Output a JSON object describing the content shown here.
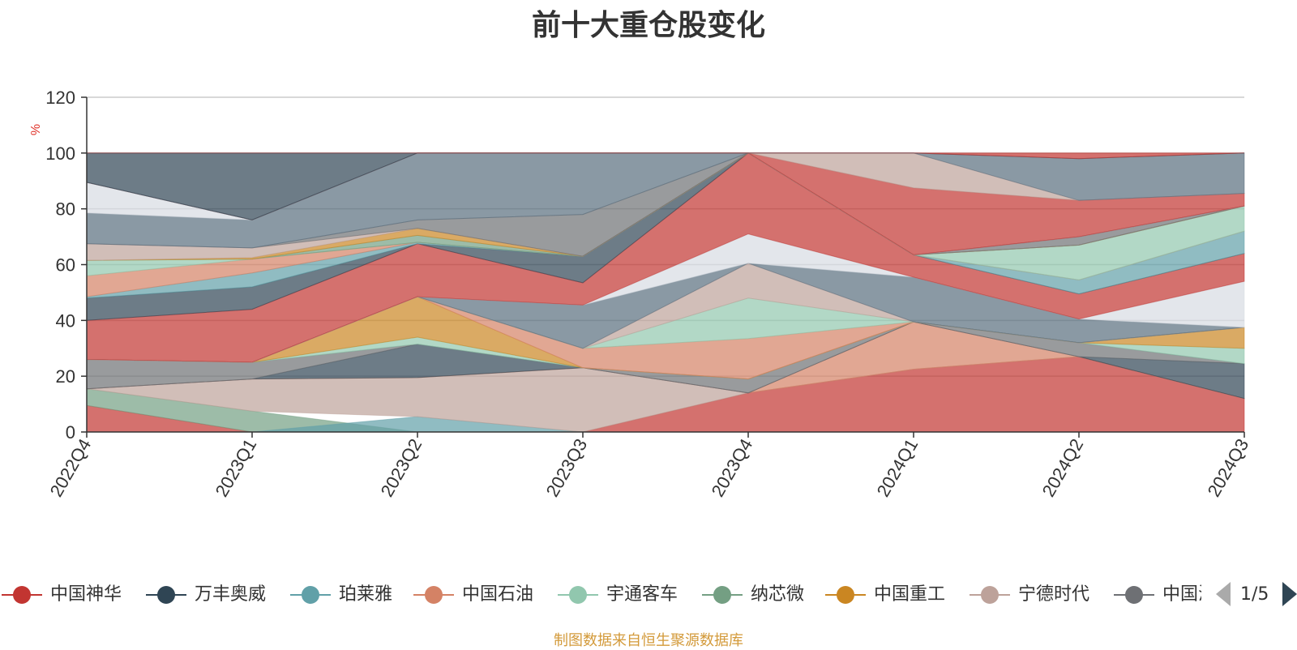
{
  "chart_data": {
    "type": "area",
    "title": "前十大重仓股变化",
    "ylabel": "%",
    "ylim": [
      0,
      120
    ],
    "yticks": [
      0,
      20,
      40,
      60,
      80,
      100,
      120
    ],
    "grid": true,
    "categories": [
      "2022Q4",
      "2023Q1",
      "2023Q2",
      "2023Q3",
      "2023Q4",
      "2024Q1",
      "2024Q2",
      "2024Q3"
    ],
    "series": [
      {
        "name": "中国神华",
        "color": "#c23531"
      },
      {
        "name": "万丰奥威",
        "color": "#2f4554"
      },
      {
        "name": "珀莱雅",
        "color": "#61a0a8"
      },
      {
        "name": "中国石油",
        "color": "#d48265"
      },
      {
        "name": "宇通客车",
        "color": "#91c7ae"
      },
      {
        "name": "纳芯微",
        "color": "#749f83"
      },
      {
        "name": "中国重工",
        "color": "#ca8622"
      },
      {
        "name": "宁德时代",
        "color": "#bda29a"
      },
      {
        "name": "中国海油",
        "color": "#6e7074"
      }
    ],
    "bands": [
      {
        "color": "#c23531",
        "values": [
          [
            0,
            9.5
          ],
          [
            0,
            0
          ],
          [
            0,
            0
          ],
          [
            0,
            0
          ],
          [
            0,
            14
          ],
          [
            0,
            22.5
          ],
          [
            0,
            27
          ],
          [
            0,
            12
          ]
        ]
      },
      {
        "color": "#749f83",
        "values": [
          [
            9.5,
            15.5
          ],
          [
            0,
            7.5
          ],
          [
            0,
            0
          ],
          [
            0,
            0
          ],
          [
            0,
            0
          ],
          [
            0,
            0
          ],
          [
            0,
            0
          ],
          [
            0,
            0
          ]
        ]
      },
      {
        "color": "#61a0a8",
        "values": [
          [
            0,
            0
          ],
          [
            0,
            0
          ],
          [
            0,
            5.5
          ],
          [
            0,
            0
          ],
          [
            0,
            0
          ],
          [
            0,
            0
          ],
          [
            0,
            0
          ],
          [
            0,
            0
          ]
        ]
      },
      {
        "color": "#bda29a",
        "values": [
          [
            15.5,
            15.5
          ],
          [
            7.5,
            19
          ],
          [
            5.5,
            19.5
          ],
          [
            0,
            23
          ],
          [
            14,
            14
          ],
          [
            22.5,
            22.5
          ],
          [
            27,
            27
          ],
          [
            12,
            12
          ]
        ]
      },
      {
        "color": "#d48265",
        "values": [
          [
            15.5,
            15.5
          ],
          [
            19,
            19
          ],
          [
            19.5,
            19.5
          ],
          [
            23,
            23
          ],
          [
            14,
            14
          ],
          [
            22.5,
            39.5
          ],
          [
            27,
            27
          ],
          [
            12,
            12
          ]
        ]
      },
      {
        "color": "#2f4554",
        "values": [
          [
            15.5,
            15.5
          ],
          [
            19,
            19
          ],
          [
            19.5,
            31.5
          ],
          [
            23,
            23
          ],
          [
            14,
            14
          ],
          [
            39.5,
            39.5
          ],
          [
            27,
            27
          ],
          [
            12,
            24.5
          ]
        ]
      },
      {
        "color": "#6e7074",
        "values": [
          [
            15.5,
            26
          ],
          [
            19,
            25
          ],
          [
            31.5,
            31.5
          ],
          [
            23,
            23
          ],
          [
            14,
            19
          ],
          [
            39.5,
            39.5
          ],
          [
            27,
            32
          ],
          [
            24.5,
            24.5
          ]
        ]
      },
      {
        "color": "#91c7ae",
        "values": [
          [
            26,
            26
          ],
          [
            25,
            25
          ],
          [
            31.5,
            34
          ],
          [
            23,
            23
          ],
          [
            19,
            19
          ],
          [
            39.5,
            39.5
          ],
          [
            32,
            32
          ],
          [
            24.5,
            30
          ]
        ]
      },
      {
        "color": "#ca8622",
        "values": [
          [
            26,
            26
          ],
          [
            25,
            25
          ],
          [
            34,
            48.5
          ],
          [
            23,
            23
          ],
          [
            19,
            19
          ],
          [
            39.5,
            39.5
          ],
          [
            32,
            32
          ],
          [
            30,
            37.5
          ]
        ]
      },
      {
        "color": "#d48265",
        "values": [
          [
            26,
            26
          ],
          [
            25,
            25
          ],
          [
            48.5,
            48.5
          ],
          [
            23,
            30
          ],
          [
            19,
            33.5
          ],
          [
            39.5,
            39.5
          ],
          [
            32,
            32
          ],
          [
            37.5,
            37.5
          ]
        ]
      },
      {
        "color": "#91c7ae",
        "values": [
          [
            26,
            26
          ],
          [
            25,
            25
          ],
          [
            48.5,
            48.5
          ],
          [
            30,
            30
          ],
          [
            33.5,
            48
          ],
          [
            39.5,
            39.5
          ],
          [
            32,
            32
          ],
          [
            37.5,
            37.5
          ]
        ]
      },
      {
        "color": "#bda29a",
        "values": [
          [
            26,
            26
          ],
          [
            25,
            25
          ],
          [
            48.5,
            48.5
          ],
          [
            30,
            30
          ],
          [
            48,
            60.5
          ],
          [
            39.5,
            39.5
          ],
          [
            32,
            32
          ],
          [
            37.5,
            37.5
          ]
        ]
      },
      {
        "color": "#596e7d",
        "values": [
          [
            26,
            26
          ],
          [
            25,
            25
          ],
          [
            48.5,
            48.5
          ],
          [
            30,
            45.5
          ],
          [
            60.5,
            60.5
          ],
          [
            39.5,
            55.5
          ],
          [
            32,
            40.5
          ],
          [
            37.5,
            37.5
          ]
        ]
      },
      {
        "color": "#d7dbe2",
        "values": [
          [
            26,
            26
          ],
          [
            25,
            25
          ],
          [
            48.5,
            48.5
          ],
          [
            45.5,
            45.5
          ],
          [
            60.5,
            71
          ],
          [
            55.5,
            55.5
          ],
          [
            40.5,
            40.5
          ],
          [
            37.5,
            54
          ]
        ]
      },
      {
        "color": "#c23531",
        "values": [
          [
            26,
            40
          ],
          [
            25,
            44
          ],
          [
            48.5,
            67.5
          ],
          [
            45.5,
            53.5
          ],
          [
            71,
            100
          ],
          [
            55.5,
            63.5
          ],
          [
            40.5,
            49.5
          ],
          [
            54,
            64
          ]
        ]
      },
      {
        "color": "#2f4554",
        "values": [
          [
            40,
            48
          ],
          [
            44,
            52
          ],
          [
            67.5,
            67.5
          ],
          [
            53.5,
            63
          ],
          [
            100,
            100
          ],
          [
            63.5,
            63.5
          ],
          [
            49.5,
            49.5
          ],
          [
            64,
            64
          ]
        ]
      },
      {
        "color": "#61a0a8",
        "values": [
          [
            48,
            48.5
          ],
          [
            52,
            57
          ],
          [
            67.5,
            68
          ],
          [
            63,
            63
          ],
          [
            100,
            100
          ],
          [
            63.5,
            63.5
          ],
          [
            49.5,
            54.5
          ],
          [
            64,
            72
          ]
        ]
      },
      {
        "color": "#d48265",
        "values": [
          [
            48.5,
            56
          ],
          [
            57,
            62
          ],
          [
            68,
            68
          ],
          [
            63,
            63
          ],
          [
            100,
            100
          ],
          [
            63.5,
            63.5
          ],
          [
            54.5,
            54.5
          ],
          [
            72,
            72
          ]
        ]
      },
      {
        "color": "#91c7ae",
        "values": [
          [
            56,
            61.5
          ],
          [
            62,
            62
          ],
          [
            68,
            68
          ],
          [
            63,
            63
          ],
          [
            100,
            100
          ],
          [
            63.5,
            63.5
          ],
          [
            54.5,
            67
          ],
          [
            72,
            81
          ]
        ]
      },
      {
        "color": "#749f83",
        "values": [
          [
            61.5,
            61.5
          ],
          [
            62,
            62
          ],
          [
            68,
            70.5
          ],
          [
            63,
            63
          ],
          [
            100,
            100
          ],
          [
            63.5,
            63.5
          ],
          [
            67,
            67
          ],
          [
            81,
            81
          ]
        ]
      },
      {
        "color": "#ca8622",
        "values": [
          [
            61.5,
            61.5
          ],
          [
            62,
            62.5
          ],
          [
            70.5,
            73
          ],
          [
            63,
            63
          ],
          [
            100,
            100
          ],
          [
            63.5,
            63.5
          ],
          [
            67,
            67
          ],
          [
            81,
            81
          ]
        ]
      },
      {
        "color": "#bda29a",
        "values": [
          [
            61.5,
            67.5
          ],
          [
            62.5,
            66
          ],
          [
            73,
            73
          ],
          [
            63,
            63
          ],
          [
            100,
            100
          ],
          [
            63.5,
            63.5
          ],
          [
            67,
            67
          ],
          [
            81,
            81
          ]
        ]
      },
      {
        "color": "#6e7074",
        "values": [
          [
            67.5,
            67.5
          ],
          [
            66,
            66
          ],
          [
            73,
            76
          ],
          [
            63,
            78
          ],
          [
            100,
            100
          ],
          [
            63.5,
            63.5
          ],
          [
            67,
            70
          ],
          [
            81,
            81
          ]
        ]
      },
      {
        "color": "#596e7d",
        "values": [
          [
            67.5,
            78.5
          ],
          [
            66,
            76
          ],
          [
            76,
            100
          ],
          [
            78,
            100
          ],
          [
            100,
            100
          ],
          [
            63.5,
            63.5
          ],
          [
            70,
            70
          ],
          [
            81,
            81
          ]
        ]
      },
      {
        "color": "#d7dbe2",
        "values": [
          [
            78.5,
            89.5
          ],
          [
            76,
            76
          ],
          [
            100,
            100
          ],
          [
            100,
            100
          ],
          [
            100,
            100
          ],
          [
            63.5,
            63.5
          ],
          [
            70,
            70
          ],
          [
            81,
            81
          ]
        ]
      },
      {
        "color": "#c23531",
        "values": [
          [
            89.5,
            89.5
          ],
          [
            76,
            76
          ],
          [
            100,
            100
          ],
          [
            100,
            100
          ],
          [
            100,
            100
          ],
          [
            63.5,
            87.5
          ],
          [
            70,
            83
          ],
          [
            81,
            85.5
          ]
        ]
      },
      {
        "color": "#bda29a",
        "values": [
          [
            89.5,
            89.5
          ],
          [
            76,
            76
          ],
          [
            100,
            100
          ],
          [
            100,
            100
          ],
          [
            100,
            100
          ],
          [
            87.5,
            100
          ],
          [
            83,
            83
          ],
          [
            85.5,
            85.5
          ]
        ]
      },
      {
        "color": "#596e7d",
        "values": [
          [
            89.5,
            89.5
          ],
          [
            76,
            76
          ],
          [
            100,
            100
          ],
          [
            100,
            100
          ],
          [
            100,
            100
          ],
          [
            100,
            100
          ],
          [
            83,
            98
          ],
          [
            85.5,
            100
          ]
        ]
      },
      {
        "color": "#2f4554",
        "values": [
          [
            89.5,
            100
          ],
          [
            76,
            100
          ],
          [
            100,
            100
          ],
          [
            100,
            100
          ],
          [
            100,
            100
          ],
          [
            100,
            100
          ],
          [
            98,
            98
          ],
          [
            100,
            100
          ]
        ]
      },
      {
        "color": "#c23531",
        "values": [
          [
            100,
            100
          ],
          [
            100,
            100
          ],
          [
            100,
            100
          ],
          [
            100,
            100
          ],
          [
            100,
            100
          ],
          [
            100,
            100
          ],
          [
            98,
            100
          ],
          [
            100,
            100
          ]
        ]
      }
    ]
  },
  "legend": {
    "items": [
      {
        "label": "中国神华",
        "color": "#c23531"
      },
      {
        "label": "万丰奥威",
        "color": "#2f4554"
      },
      {
        "label": "珀莱雅",
        "color": "#61a0a8"
      },
      {
        "label": "中国石油",
        "color": "#d48265"
      },
      {
        "label": "宇通客车",
        "color": "#91c7ae"
      },
      {
        "label": "纳芯微",
        "color": "#749f83"
      },
      {
        "label": "中国重工",
        "color": "#ca8622"
      },
      {
        "label": "宁德时代",
        "color": "#bda29a"
      },
      {
        "label": "中国海油",
        "color": "#6e7074"
      }
    ],
    "page_indicator": "1/5"
  },
  "footer": {
    "source": "制图数据来自恒生聚源数据库"
  }
}
